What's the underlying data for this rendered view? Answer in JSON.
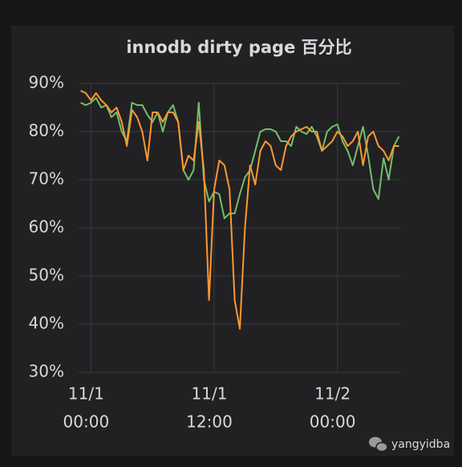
{
  "chart_data": {
    "type": "line",
    "title": "innodb dirty page 百分比",
    "x": [
      -1,
      -0.5,
      0,
      0.5,
      1,
      1.5,
      2,
      2.5,
      3,
      3.5,
      4,
      4.5,
      5,
      5.5,
      6,
      6.5,
      7,
      7.5,
      8,
      8.5,
      9,
      9.5,
      10,
      10.5,
      11,
      11.5,
      12,
      12.5,
      13,
      13.5,
      14,
      14.5,
      15,
      15.5,
      16,
      16.5,
      17,
      17.5,
      18,
      18.5,
      19,
      19.5,
      20,
      20.5,
      21,
      21.5,
      22,
      22.5,
      23,
      23.5,
      24,
      24.5,
      25,
      25.5,
      26,
      26.5,
      27,
      27.5,
      28,
      28.5,
      29,
      29.5,
      30
    ],
    "series": [
      {
        "color": "#73bf69",
        "values": [
          86,
          85.5,
          86,
          87,
          85,
          85.5,
          83,
          84,
          80,
          78,
          86,
          85.5,
          85.5,
          83.5,
          82,
          84,
          80,
          84,
          85.5,
          82,
          72,
          70,
          72,
          86,
          70,
          65.5,
          67.5,
          67,
          62,
          63,
          63,
          67,
          70.5,
          72,
          76,
          80,
          80.5,
          80.5,
          80,
          78,
          78,
          77,
          81,
          80,
          79.5,
          81,
          79,
          76,
          80,
          81,
          81.5,
          78,
          76,
          73,
          77,
          81,
          75,
          68,
          66,
          74.5,
          70,
          77,
          79
        ]
      },
      {
        "color": "#ff9830",
        "values": [
          88.5,
          88,
          86.5,
          88,
          86.5,
          85.5,
          84,
          85,
          82,
          77,
          84.5,
          83,
          80,
          74,
          84,
          84,
          82,
          84,
          84,
          82,
          72,
          75,
          74,
          82,
          72,
          45,
          68,
          74,
          73,
          68,
          45,
          39,
          60,
          73,
          69,
          76,
          78,
          77,
          73,
          72,
          77,
          79,
          80,
          80.5,
          81,
          80,
          80,
          76,
          77,
          78,
          80,
          79,
          77,
          78,
          80,
          73,
          79,
          80,
          77,
          76,
          74,
          77,
          77
        ]
      }
    ],
    "xlim": [
      -1.2,
      30.2
    ],
    "xticks": [
      {
        "value": 0,
        "label": [
          "11/1",
          "00:00"
        ]
      },
      {
        "value": 12,
        "label": [
          "11/1",
          "12:00"
        ]
      },
      {
        "value": 24,
        "label": [
          "11/2",
          "00:00"
        ]
      }
    ],
    "ylim": [
      30,
      90
    ],
    "yticks": [
      {
        "value": 30,
        "label": "30%"
      },
      {
        "value": 40,
        "label": "40%"
      },
      {
        "value": 50,
        "label": "50%"
      },
      {
        "value": 60,
        "label": "60%"
      },
      {
        "value": 70,
        "label": "70%"
      },
      {
        "value": 80,
        "label": "80%"
      },
      {
        "value": 90,
        "label": "90%"
      }
    ],
    "grid": true
  },
  "watermark": "yangyidba"
}
